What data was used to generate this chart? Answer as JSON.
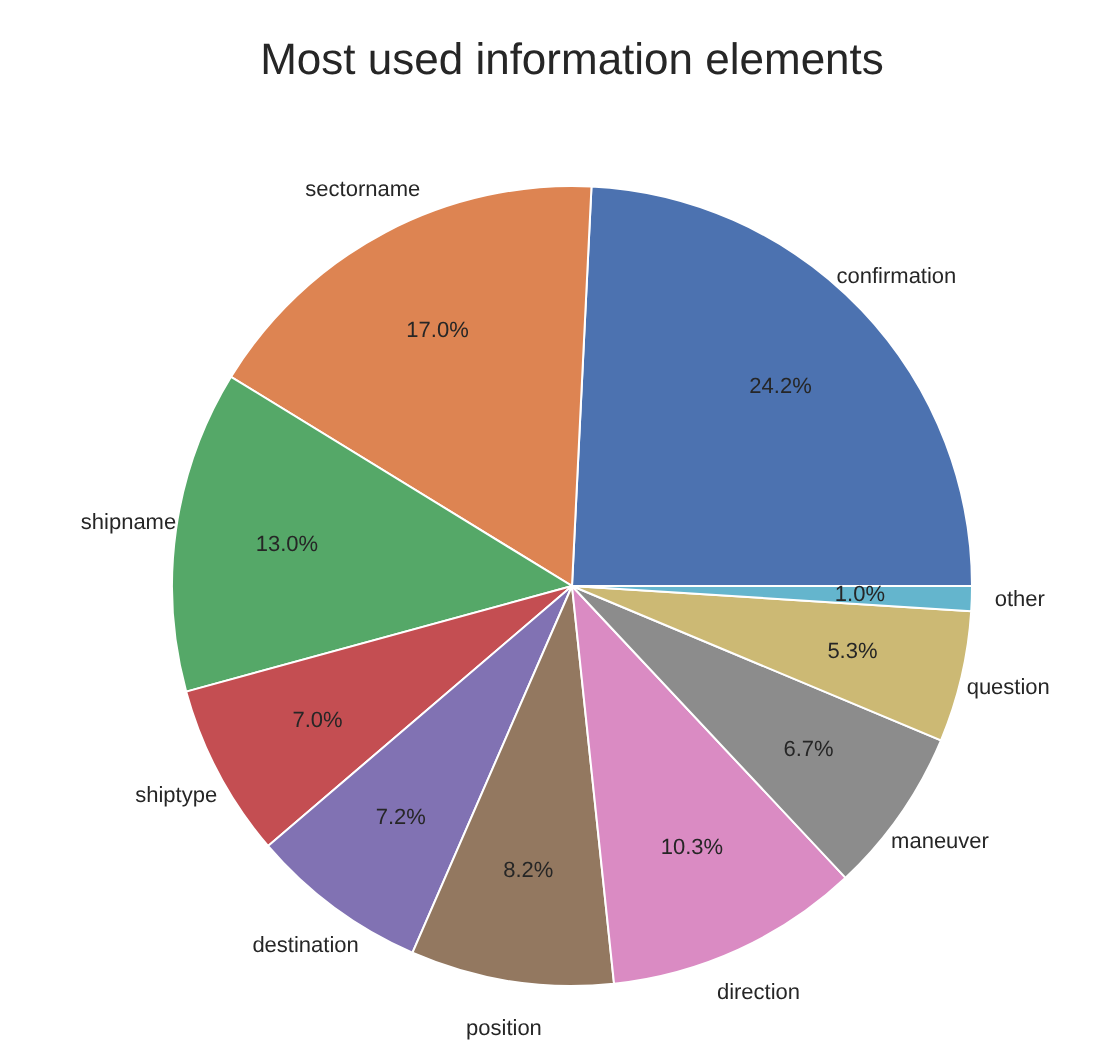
{
  "chart_data": {
    "type": "pie",
    "title": "Most used information elements",
    "categories": [
      "confirmation",
      "sectorname",
      "shipname",
      "shiptype",
      "destination",
      "position",
      "direction",
      "maneuver",
      "question",
      "other"
    ],
    "values": [
      24.2,
      17.0,
      13.0,
      7.0,
      7.2,
      8.2,
      10.3,
      6.7,
      5.3,
      1.0
    ],
    "value_labels": [
      "24.2%",
      "17.0%",
      "13.0%",
      "7.0%",
      "7.2%",
      "8.2%",
      "10.3%",
      "6.7%",
      "5.3%",
      "1.0%"
    ],
    "colors": [
      "#4c72b0",
      "#dd8452",
      "#55a868",
      "#c44e52",
      "#8172b3",
      "#937860",
      "#da8bc3",
      "#8c8c8c",
      "#ccb974",
      "#64b5cd"
    ]
  }
}
